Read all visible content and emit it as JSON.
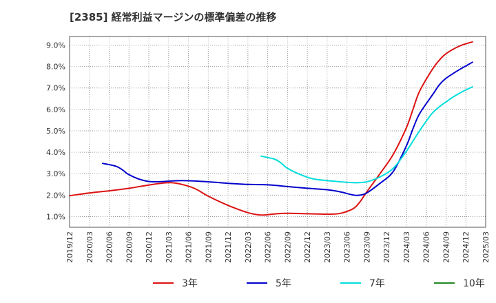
{
  "chart_data": {
    "type": "line",
    "title": "[2385]  経常利益マージンの標準偏差の推移",
    "xlabel": "",
    "ylabel": "",
    "x_ticks": [
      "2019/12",
      "2020/03",
      "2020/06",
      "2020/09",
      "2020/12",
      "2021/03",
      "2021/06",
      "2021/09",
      "2021/12",
      "2022/03",
      "2022/06",
      "2022/09",
      "2022/12",
      "2023/03",
      "2023/06",
      "2023/09",
      "2023/12",
      "2024/03",
      "2024/06",
      "2024/09",
      "2024/12",
      "2025/03"
    ],
    "y_ticks": [
      "1.0%",
      "2.0%",
      "3.0%",
      "4.0%",
      "5.0%",
      "6.0%",
      "7.0%",
      "8.0%",
      "9.0%"
    ],
    "ylim": [
      0.5,
      9.4
    ],
    "grid": true,
    "legend_position": "bottom",
    "series": [
      {
        "name": "3年",
        "color": "#dd1111",
        "points": [
          [
            "2019/12",
            1.97
          ],
          [
            "2020/03",
            2.1
          ],
          [
            "2020/06",
            2.2
          ],
          [
            "2020/09",
            2.32
          ],
          [
            "2020/12",
            2.47
          ],
          [
            "2021/03",
            2.58
          ],
          [
            "2021/05",
            2.5
          ],
          [
            "2021/07",
            2.3
          ],
          [
            "2021/09",
            1.95
          ],
          [
            "2021/12",
            1.52
          ],
          [
            "2022/03",
            1.18
          ],
          [
            "2022/05",
            1.07
          ],
          [
            "2022/07",
            1.12
          ],
          [
            "2022/09",
            1.15
          ],
          [
            "2022/12",
            1.13
          ],
          [
            "2023/03",
            1.11
          ],
          [
            "2023/05",
            1.15
          ],
          [
            "2023/07",
            1.38
          ],
          [
            "2023/08",
            1.7
          ],
          [
            "2023/09",
            2.15
          ],
          [
            "2023/11",
            3.0
          ],
          [
            "2024/01",
            3.9
          ],
          [
            "2024/03",
            5.15
          ],
          [
            "2024/04",
            6.0
          ],
          [
            "2024/05",
            6.85
          ],
          [
            "2024/07",
            7.9
          ],
          [
            "2024/08",
            8.3
          ],
          [
            "2024/09",
            8.6
          ],
          [
            "2024/11",
            8.95
          ],
          [
            "2025/01",
            9.15
          ]
        ]
      },
      {
        "name": "5年",
        "color": "#0000cc",
        "points": [
          [
            "2020/05",
            3.48
          ],
          [
            "2020/07",
            3.35
          ],
          [
            "2020/08",
            3.18
          ],
          [
            "2020/09",
            2.95
          ],
          [
            "2020/11",
            2.7
          ],
          [
            "2021/01",
            2.62
          ],
          [
            "2021/05",
            2.68
          ],
          [
            "2021/09",
            2.62
          ],
          [
            "2021/12",
            2.55
          ],
          [
            "2022/03",
            2.5
          ],
          [
            "2022/06",
            2.48
          ],
          [
            "2022/09",
            2.4
          ],
          [
            "2022/12",
            2.32
          ],
          [
            "2023/03",
            2.25
          ],
          [
            "2023/05",
            2.15
          ],
          [
            "2023/07",
            2.0
          ],
          [
            "2023/08",
            2.0
          ],
          [
            "2023/09",
            2.1
          ],
          [
            "2023/11",
            2.55
          ],
          [
            "2024/01",
            3.1
          ],
          [
            "2024/03",
            4.3
          ],
          [
            "2024/04",
            5.1
          ],
          [
            "2024/05",
            5.8
          ],
          [
            "2024/07",
            6.7
          ],
          [
            "2024/08",
            7.15
          ],
          [
            "2024/09",
            7.45
          ],
          [
            "2024/11",
            7.85
          ],
          [
            "2025/01",
            8.2
          ]
        ]
      },
      {
        "name": "7年",
        "color": "#00dddd",
        "points": [
          [
            "2022/05",
            3.82
          ],
          [
            "2022/07",
            3.68
          ],
          [
            "2022/08",
            3.5
          ],
          [
            "2022/09",
            3.25
          ],
          [
            "2022/11",
            2.95
          ],
          [
            "2023/01",
            2.75
          ],
          [
            "2023/04",
            2.65
          ],
          [
            "2023/07",
            2.58
          ],
          [
            "2023/09",
            2.62
          ],
          [
            "2023/11",
            2.85
          ],
          [
            "2024/01",
            3.25
          ],
          [
            "2024/03",
            4.05
          ],
          [
            "2024/05",
            5.0
          ],
          [
            "2024/07",
            5.85
          ],
          [
            "2024/09",
            6.35
          ],
          [
            "2024/11",
            6.75
          ],
          [
            "2025/01",
            7.05
          ]
        ]
      },
      {
        "name": "10年",
        "color": "#228822",
        "points": []
      }
    ]
  }
}
